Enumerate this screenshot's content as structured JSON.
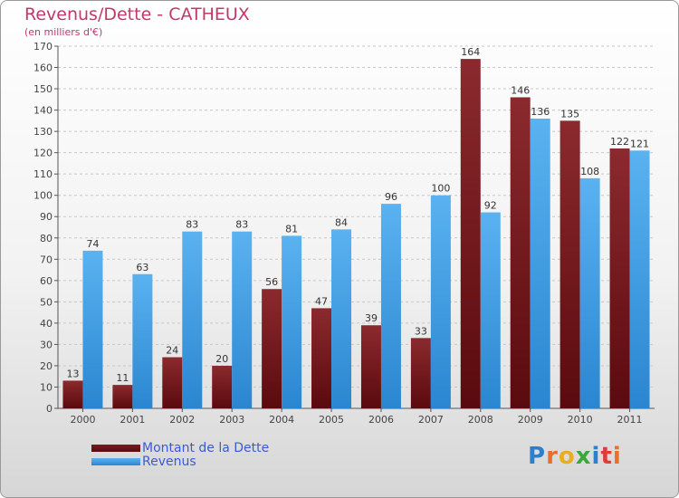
{
  "title": "Revenus/Dette - CATHEUX",
  "subtitle": "(en milliers d'€)",
  "logo": {
    "letters": [
      "P",
      "r",
      "o",
      "x",
      "i",
      "t",
      "i"
    ],
    "colors": [
      "#2f7fcf",
      "#e8702a",
      "#e8b020",
      "#3aa83a",
      "#2f7fcf",
      "#e03a3a",
      "#e8702a"
    ]
  },
  "chart_data": {
    "type": "bar",
    "categories": [
      "2000",
      "2001",
      "2002",
      "2003",
      "2004",
      "2005",
      "2006",
      "2007",
      "2008",
      "2009",
      "2010",
      "2011"
    ],
    "series": [
      {
        "name": "Montant de la Dette",
        "values": [
          13,
          11,
          24,
          20,
          56,
          47,
          39,
          33,
          164,
          146,
          135,
          122
        ],
        "color": "#7a1a1e"
      },
      {
        "name": "Revenus",
        "values": [
          74,
          63,
          83,
          83,
          81,
          84,
          96,
          100,
          92,
          136,
          108,
          121
        ],
        "color": "#3d9ee6"
      }
    ],
    "ylim": [
      0,
      170
    ],
    "yticks": [
      0,
      10,
      20,
      30,
      40,
      50,
      60,
      70,
      80,
      90,
      100,
      110,
      120,
      130,
      140,
      150,
      160,
      170
    ],
    "grid": true,
    "legend": "bottom-left"
  }
}
